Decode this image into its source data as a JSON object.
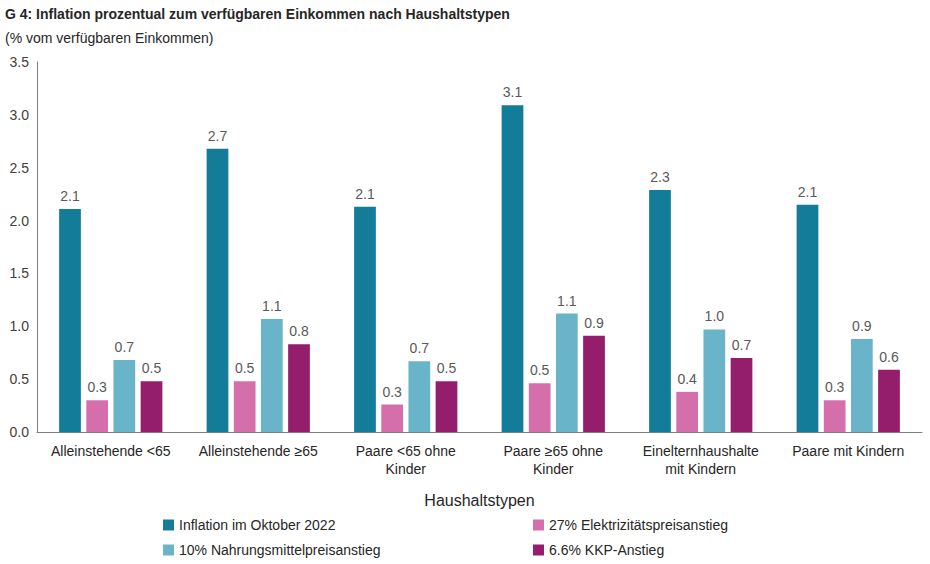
{
  "chart_data": {
    "type": "bar",
    "title": "G 4: Inflation prozentual zum verfügbaren Einkommen nach Haushaltstypen",
    "subtitle": "(% vom verfügbaren Einkommen)",
    "x_label": "Haushaltstypen",
    "categories": [
      "Alleinstehende <65",
      "Alleinstehende ≥65",
      "Paare <65 ohne\nKinder",
      "Paare ≥65 ohne\nKinder",
      "Einelternhaushalte\nmit Kindern",
      "Paare mit Kindern"
    ],
    "series": [
      {
        "name": "Inflation im Oktober 2022",
        "color": "#137c98",
        "values": [
          2.11,
          2.68,
          2.13,
          3.09,
          2.29,
          2.15
        ],
        "value_labels": [
          "2.1",
          "2.7",
          "2.1",
          "3.1",
          "2.3",
          "2.1"
        ]
      },
      {
        "name": "27% Elektrizitätspreisanstieg",
        "color": "#d46fac",
        "values": [
          0.3,
          0.48,
          0.26,
          0.46,
          0.38,
          0.3
        ],
        "value_labels": [
          "0.3",
          "0.5",
          "0.3",
          "0.5",
          "0.4",
          "0.3"
        ]
      },
      {
        "name": "10% Nahrungsmittelpreisanstieg",
        "color": "#6ab4c9",
        "values": [
          0.68,
          1.07,
          0.67,
          1.12,
          0.97,
          0.88
        ],
        "value_labels": [
          "0.7",
          "1.1",
          "0.7",
          "1.1",
          "1.0",
          "0.9"
        ]
      },
      {
        "name": "6.6% KKP-Anstieg",
        "color": "#941e6c",
        "values": [
          0.48,
          0.83,
          0.48,
          0.91,
          0.7,
          0.59
        ],
        "value_labels": [
          "0.5",
          "0.8",
          "0.5",
          "0.9",
          "0.7",
          "0.6"
        ]
      }
    ],
    "ylim": [
      0,
      3.5
    ],
    "yticks": [
      {
        "value": 0,
        "label": "0.0"
      },
      0.5,
      {
        "value": 1,
        "label": "1.0"
      },
      1.5,
      {
        "value": 2,
        "label": "2.0"
      },
      2.5,
      {
        "value": 3,
        "label": "3.0"
      },
      3.5
    ],
    "grid": false,
    "legend": "bottom",
    "data_labels": true
  }
}
